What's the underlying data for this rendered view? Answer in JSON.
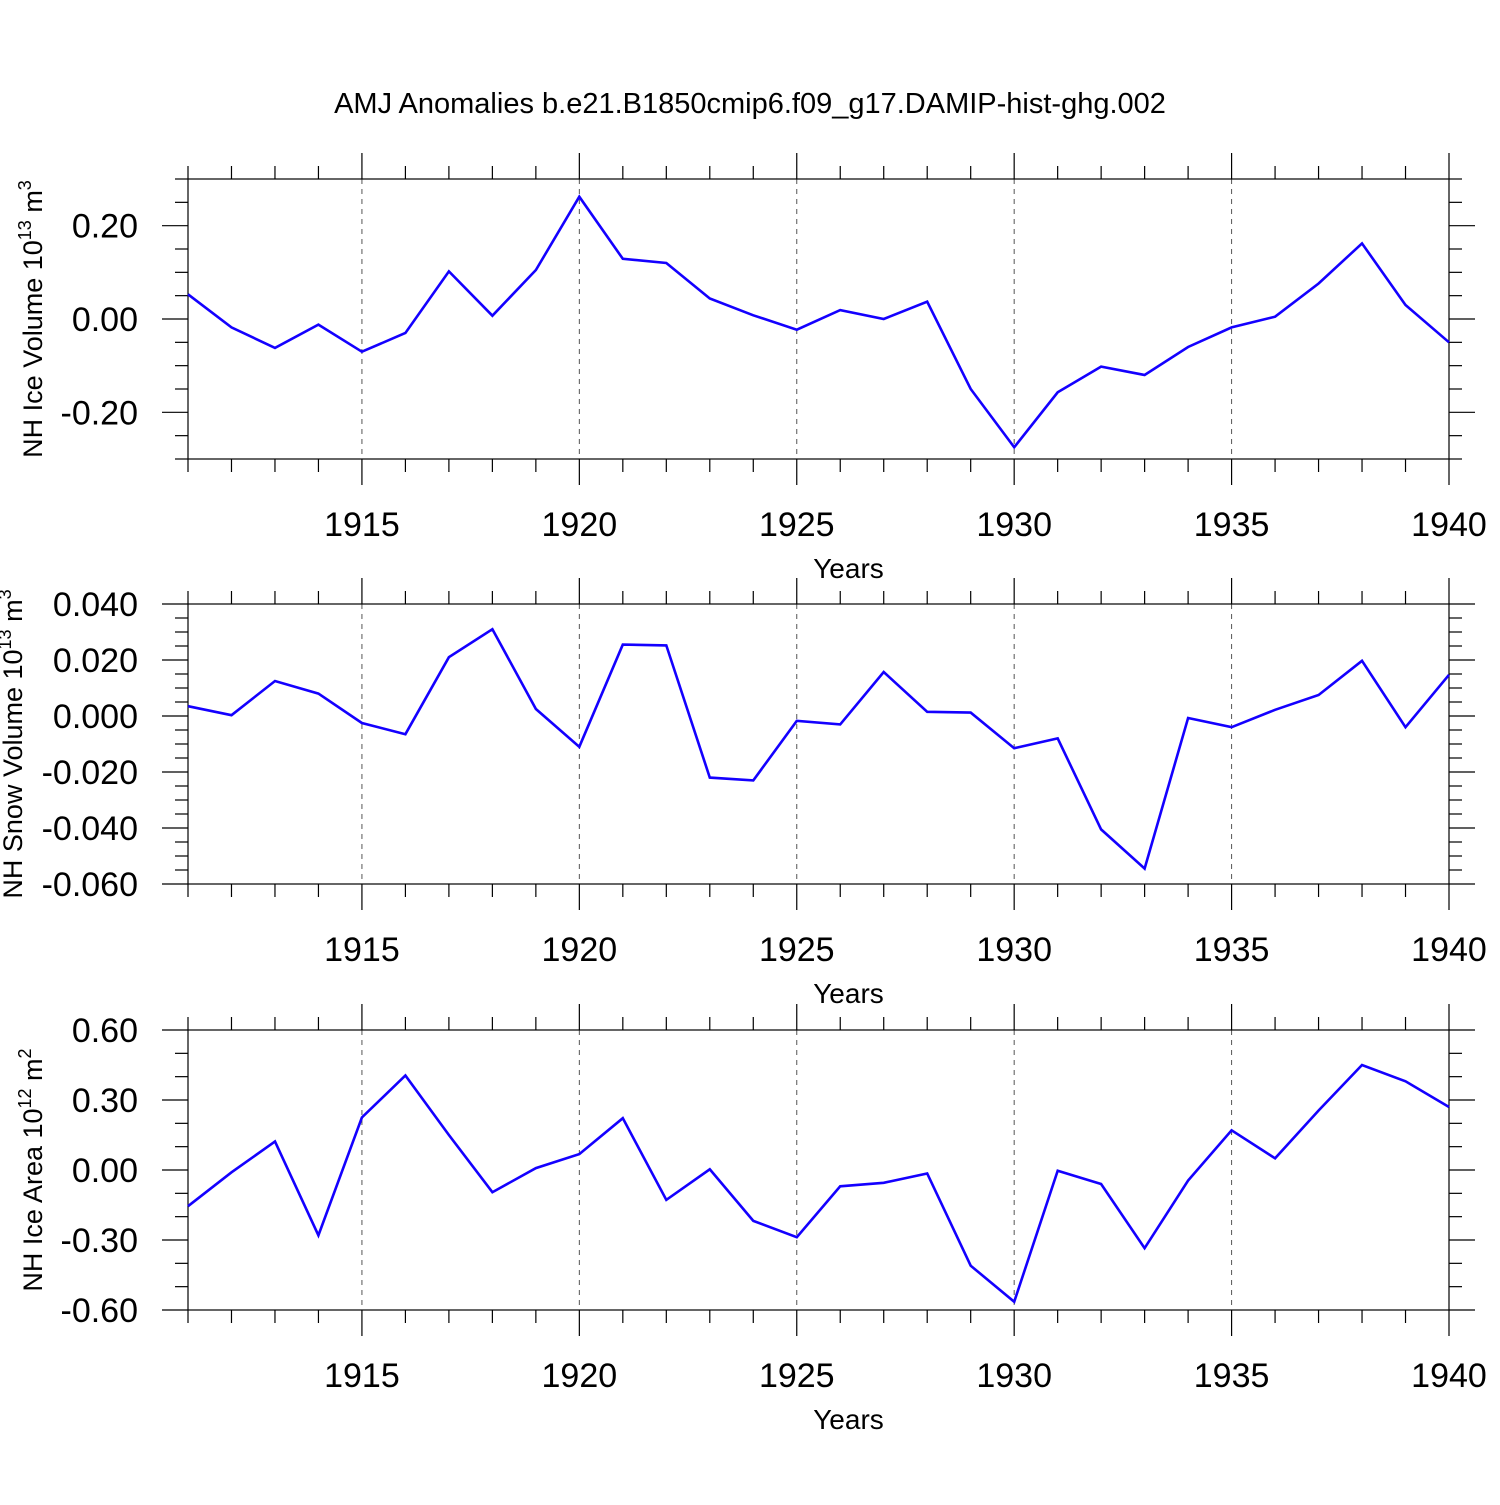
{
  "title": "AMJ Anomalies b.e21.B1850cmip6.f09_g17.DAMIP-hist-ghg.002",
  "line_color": "#1400ff",
  "chart_data": [
    {
      "type": "line",
      "name": "nh-ice-volume",
      "ylabel_main": "NH Ice Volume 10",
      "ylabel_exp": "13",
      "ylabel_unit": " m",
      "ylabel_unit_exp": "3",
      "xlabel": "Years",
      "xlim": [
        1911,
        1940
      ],
      "ylim": [
        -0.3,
        0.3
      ],
      "yticks": [
        -0.2,
        0.0,
        0.2
      ],
      "ytick_labels": [
        "-0.20",
        "0.00",
        "0.20"
      ],
      "yminor_step": 0.05,
      "xticks": [
        1915,
        1920,
        1925,
        1930,
        1935,
        1940
      ],
      "xtick_labels": [
        "1915",
        "1920",
        "1925",
        "1930",
        "1935",
        "1940"
      ],
      "x": [
        1911,
        1912,
        1913,
        1914,
        1915,
        1916,
        1917,
        1918,
        1919,
        1920,
        1921,
        1922,
        1923,
        1924,
        1925,
        1926,
        1927,
        1928,
        1929,
        1930,
        1931,
        1932,
        1933,
        1934,
        1935,
        1936,
        1937,
        1938,
        1939,
        1940
      ],
      "values": [
        0.053,
        -0.018,
        -0.062,
        -0.012,
        -0.07,
        -0.03,
        0.102,
        0.007,
        0.105,
        0.262,
        0.129,
        0.12,
        0.044,
        0.008,
        -0.023,
        0.019,
        0.0,
        0.037,
        -0.15,
        -0.275,
        -0.157,
        -0.102,
        -0.12,
        -0.06,
        -0.018,
        0.005,
        0.076,
        0.162,
        0.03,
        -0.05
      ]
    },
    {
      "type": "line",
      "name": "nh-snow-volume",
      "ylabel_main": "NH Snow Volume 10",
      "ylabel_exp": "13",
      "ylabel_unit": " m",
      "ylabel_unit_exp": "3",
      "xlabel": "Years",
      "xlim": [
        1911,
        1940
      ],
      "ylim": [
        -0.06,
        0.04
      ],
      "yticks": [
        -0.06,
        -0.04,
        -0.02,
        0.0,
        0.02,
        0.04
      ],
      "ytick_labels": [
        "-0.060",
        "-0.040",
        "-0.020",
        "0.000",
        "0.020",
        "0.040"
      ],
      "yminor_step": 0.005,
      "xticks": [
        1915,
        1920,
        1925,
        1930,
        1935,
        1940
      ],
      "xtick_labels": [
        "1915",
        "1920",
        "1925",
        "1930",
        "1935",
        "1940"
      ],
      "x": [
        1911,
        1912,
        1913,
        1914,
        1915,
        1916,
        1917,
        1918,
        1919,
        1920,
        1921,
        1922,
        1923,
        1924,
        1925,
        1926,
        1927,
        1928,
        1929,
        1930,
        1931,
        1932,
        1933,
        1934,
        1935,
        1936,
        1937,
        1938,
        1939,
        1940
      ],
      "values": [
        0.0035,
        0.0003,
        0.0125,
        0.008,
        -0.0025,
        -0.0065,
        0.021,
        0.031,
        0.0025,
        -0.011,
        0.0255,
        0.0252,
        -0.022,
        -0.023,
        -0.0017,
        -0.003,
        0.0157,
        0.0015,
        0.0012,
        -0.0115,
        -0.008,
        -0.0405,
        -0.0545,
        -0.0007,
        -0.004,
        0.0022,
        0.0075,
        0.0197,
        -0.004,
        0.0147
      ]
    },
    {
      "type": "line",
      "name": "nh-ice-area",
      "ylabel_main": "NH Ice Area 10",
      "ylabel_exp": "12",
      "ylabel_unit": " m",
      "ylabel_unit_exp": "2",
      "xlabel": "Years",
      "xlim": [
        1911,
        1940
      ],
      "ylim": [
        -0.6,
        0.6
      ],
      "yticks": [
        -0.6,
        -0.3,
        0.0,
        0.3,
        0.6
      ],
      "ytick_labels": [
        "-0.60",
        "-0.30",
        "0.00",
        "0.30",
        "0.60"
      ],
      "yminor_step": 0.1,
      "xticks": [
        1915,
        1920,
        1925,
        1930,
        1935,
        1940
      ],
      "xtick_labels": [
        "1915",
        "1920",
        "1925",
        "1930",
        "1935",
        "1940"
      ],
      "x": [
        1911,
        1912,
        1913,
        1914,
        1915,
        1916,
        1917,
        1918,
        1919,
        1920,
        1921,
        1922,
        1923,
        1924,
        1925,
        1926,
        1927,
        1928,
        1929,
        1930,
        1931,
        1932,
        1933,
        1934,
        1935,
        1936,
        1937,
        1938,
        1939,
        1940
      ],
      "values": [
        -0.155,
        -0.01,
        0.122,
        -0.28,
        0.225,
        0.405,
        0.15,
        -0.095,
        0.008,
        0.068,
        0.222,
        -0.128,
        0.003,
        -0.218,
        -0.288,
        -0.07,
        -0.055,
        -0.015,
        -0.41,
        -0.565,
        -0.003,
        -0.06,
        -0.335,
        -0.045,
        0.17,
        0.05,
        0.255,
        0.45,
        0.38,
        0.27
      ]
    }
  ]
}
